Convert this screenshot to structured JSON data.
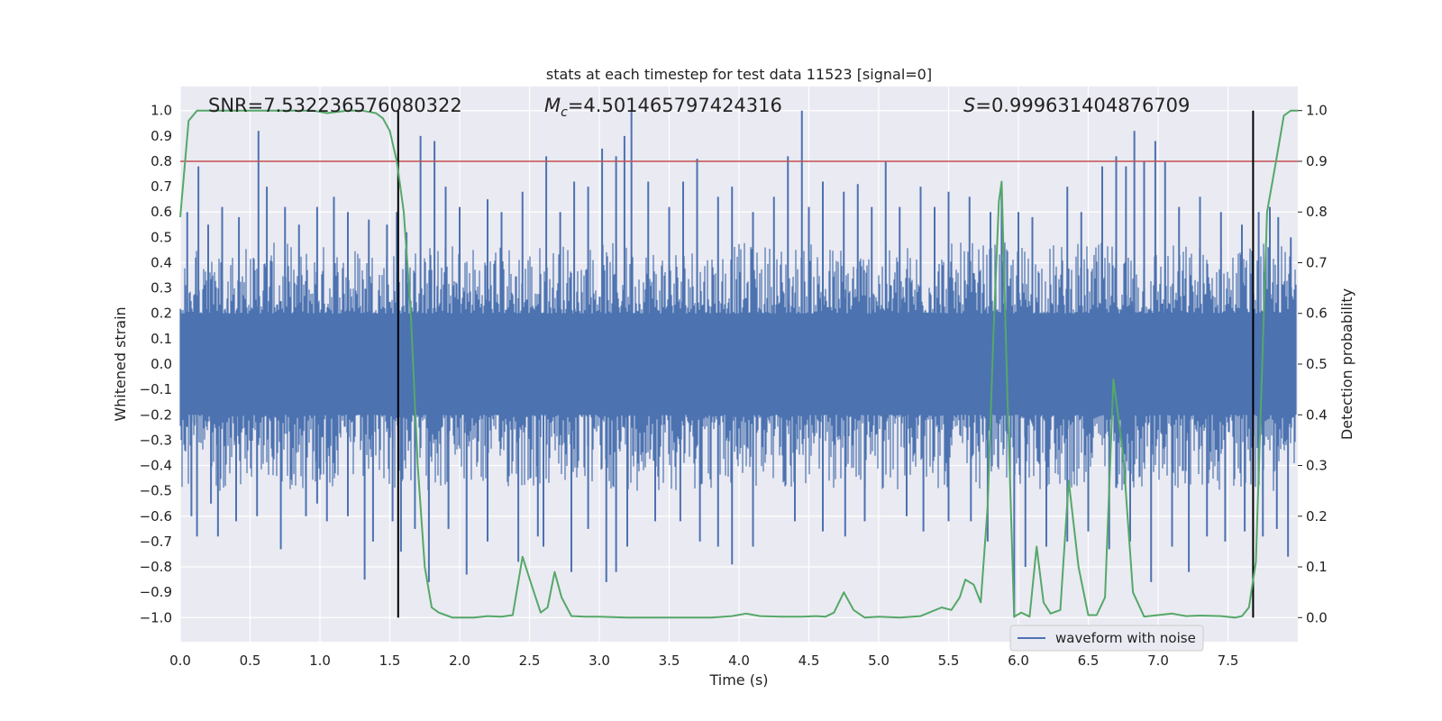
{
  "chart_data": {
    "type": "line",
    "title": "stats at each timestep for test data 11523 [signal=0]",
    "xlabel": "Time (s)",
    "ylabel_left": "Whitened strain",
    "ylabel_right": "Detection probability",
    "xlim": [
      0.0,
      8.0
    ],
    "ylim_left": [
      -1.095,
      1.095
    ],
    "ylim_right": [
      -0.0475,
      1.0475
    ],
    "x_ticks": [
      0.0,
      0.5,
      1.0,
      1.5,
      2.0,
      2.5,
      3.0,
      3.5,
      4.0,
      4.5,
      5.0,
      5.5,
      6.0,
      6.5,
      7.0,
      7.5
    ],
    "x_tick_labels": [
      "0.0",
      "0.5",
      "1.0",
      "1.5",
      "2.0",
      "2.5",
      "3.0",
      "3.5",
      "4.0",
      "4.5",
      "5.0",
      "5.5",
      "6.0",
      "6.5",
      "7.0",
      "7.5"
    ],
    "y_left_ticks": [
      1.0,
      0.9,
      0.8,
      0.7,
      0.6,
      0.5,
      0.4,
      0.3,
      0.2,
      0.1,
      0.0,
      -0.1,
      -0.2,
      -0.3,
      -0.4,
      -0.5,
      -0.6,
      -0.7,
      -0.8,
      -0.9,
      -1.0
    ],
    "y_left_tick_labels": [
      "1.0",
      "0.9",
      "0.8",
      "0.7",
      "0.6",
      "0.5",
      "0.4",
      "0.3",
      "0.2",
      "0.1",
      "0.0",
      "−0.1",
      "−0.2",
      "−0.3",
      "−0.4",
      "−0.5",
      "−0.6",
      "−0.7",
      "−0.8",
      "−0.9",
      "−1.0"
    ],
    "y_right_ticks": [
      1.0,
      0.9,
      0.8,
      0.7,
      0.6,
      0.5,
      0.4,
      0.3,
      0.2,
      0.1,
      0.0
    ],
    "y_right_tick_labels": [
      "1.0",
      "0.9",
      "0.8",
      "0.7",
      "0.6",
      "0.5",
      "0.4",
      "0.3",
      "0.2",
      "0.1",
      "0.0"
    ],
    "annotations": {
      "snr": "SNR=7.532236576080322",
      "mc_symbol": "M",
      "mc_subscript": "c",
      "mc_value": "=4.501465797424316",
      "s_symbol": "S",
      "s_value": "=0.999631404876709"
    },
    "threshold": {
      "axis": "left",
      "value": 0.8,
      "color": "#c44e52"
    },
    "vertical_lines": {
      "x": [
        1.56,
        7.68
      ],
      "ymin": -1.0,
      "ymax": 1.0,
      "color": "#000000"
    },
    "legend": {
      "entries": [
        "waveform with noise"
      ],
      "location": "lower-right"
    },
    "series": [
      {
        "name": "waveform with noise",
        "axis": "left",
        "color": "#4c72b0",
        "style": "dense noise trace spanning 0.0 to 7.99 s",
        "core_envelope": [
          -0.2,
          0.2
        ],
        "peaks_pos": [
          [
            0.05,
            0.6
          ],
          [
            0.13,
            0.78
          ],
          [
            0.2,
            0.55
          ],
          [
            0.3,
            0.62
          ],
          [
            0.42,
            0.58
          ],
          [
            0.56,
            0.92
          ],
          [
            0.62,
            0.7
          ],
          [
            0.75,
            0.62
          ],
          [
            0.85,
            0.55
          ],
          [
            0.98,
            0.62
          ],
          [
            1.1,
            0.66
          ],
          [
            1.2,
            0.6
          ],
          [
            1.35,
            0.57
          ],
          [
            1.48,
            0.55
          ],
          [
            1.55,
            0.6
          ],
          [
            1.62,
            0.52
          ],
          [
            1.72,
            0.9
          ],
          [
            1.82,
            0.88
          ],
          [
            1.9,
            0.7
          ],
          [
            2.0,
            0.62
          ],
          [
            2.2,
            0.65
          ],
          [
            2.3,
            0.6
          ],
          [
            2.45,
            0.68
          ],
          [
            2.62,
            0.82
          ],
          [
            2.72,
            0.6
          ],
          [
            2.82,
            0.72
          ],
          [
            2.92,
            0.7
          ],
          [
            3.02,
            0.85
          ],
          [
            3.12,
            0.82
          ],
          [
            3.18,
            0.9
          ],
          [
            3.23,
            1.0
          ],
          [
            3.35,
            0.72
          ],
          [
            3.5,
            0.62
          ],
          [
            3.6,
            0.72
          ],
          [
            3.7,
            0.81
          ],
          [
            3.85,
            0.66
          ],
          [
            3.95,
            0.7
          ],
          [
            4.1,
            0.6
          ],
          [
            4.25,
            0.66
          ],
          [
            4.35,
            0.82
          ],
          [
            4.45,
            1.0
          ],
          [
            4.5,
            0.62
          ],
          [
            4.6,
            0.72
          ],
          [
            4.75,
            0.68
          ],
          [
            4.85,
            0.71
          ],
          [
            4.95,
            0.62
          ],
          [
            5.05,
            0.8
          ],
          [
            5.15,
            0.62
          ],
          [
            5.3,
            0.7
          ],
          [
            5.4,
            0.62
          ],
          [
            5.5,
            0.68
          ],
          [
            5.65,
            0.66
          ],
          [
            5.8,
            0.6
          ],
          [
            5.88,
            0.7
          ],
          [
            6.0,
            0.6
          ],
          [
            6.1,
            0.58
          ],
          [
            6.35,
            0.7
          ],
          [
            6.45,
            0.6
          ],
          [
            6.6,
            0.78
          ],
          [
            6.7,
            0.82
          ],
          [
            6.77,
            0.78
          ],
          [
            6.83,
            0.92
          ],
          [
            6.9,
            0.8
          ],
          [
            6.98,
            0.88
          ],
          [
            7.05,
            0.8
          ],
          [
            7.15,
            0.62
          ],
          [
            7.3,
            0.66
          ],
          [
            7.45,
            0.6
          ],
          [
            7.6,
            0.55
          ],
          [
            7.72,
            0.6
          ],
          [
            7.8,
            0.62
          ],
          [
            7.86,
            0.58
          ],
          [
            7.95,
            0.5
          ]
        ],
        "peaks_neg": [
          [
            0.08,
            -0.6
          ],
          [
            0.12,
            -0.68
          ],
          [
            0.22,
            -0.55
          ],
          [
            0.27,
            -0.68
          ],
          [
            0.4,
            -0.62
          ],
          [
            0.55,
            -0.6
          ],
          [
            0.72,
            -0.73
          ],
          [
            0.9,
            -0.6
          ],
          [
            0.98,
            -0.55
          ],
          [
            1.05,
            -0.62
          ],
          [
            1.2,
            -0.6
          ],
          [
            1.32,
            -0.85
          ],
          [
            1.38,
            -0.7
          ],
          [
            1.52,
            -0.62
          ],
          [
            1.58,
            -0.74
          ],
          [
            1.68,
            -0.65
          ],
          [
            1.78,
            -0.86
          ],
          [
            1.92,
            -0.65
          ],
          [
            2.05,
            -0.83
          ],
          [
            2.2,
            -0.7
          ],
          [
            2.42,
            -0.78
          ],
          [
            2.56,
            -0.68
          ],
          [
            2.6,
            -0.72
          ],
          [
            2.8,
            -0.82
          ],
          [
            2.92,
            -0.65
          ],
          [
            3.05,
            -0.86
          ],
          [
            3.12,
            -0.82
          ],
          [
            3.2,
            -0.72
          ],
          [
            3.4,
            -0.62
          ],
          [
            3.58,
            -0.62
          ],
          [
            3.72,
            -0.7
          ],
          [
            3.85,
            -0.72
          ],
          [
            3.95,
            -0.79
          ],
          [
            4.1,
            -0.72
          ],
          [
            4.4,
            -0.62
          ],
          [
            4.6,
            -0.66
          ],
          [
            4.76,
            -0.68
          ],
          [
            4.9,
            -0.62
          ],
          [
            5.2,
            -0.6
          ],
          [
            5.32,
            -0.66
          ],
          [
            5.5,
            -0.62
          ],
          [
            5.66,
            -0.62
          ],
          [
            5.78,
            -0.7
          ],
          [
            5.97,
            -1.0
          ],
          [
            6.05,
            -0.8
          ],
          [
            6.2,
            -0.72
          ],
          [
            6.35,
            -0.7
          ],
          [
            6.5,
            -0.66
          ],
          [
            6.65,
            -0.73
          ],
          [
            6.8,
            -0.7
          ],
          [
            6.95,
            -0.86
          ],
          [
            7.1,
            -0.72
          ],
          [
            7.22,
            -0.82
          ],
          [
            7.35,
            -0.68
          ],
          [
            7.48,
            -0.7
          ],
          [
            7.62,
            -0.66
          ],
          [
            7.75,
            -0.68
          ],
          [
            7.85,
            -0.65
          ],
          [
            7.93,
            -0.76
          ]
        ]
      },
      {
        "name": "Detection probability",
        "axis": "right",
        "color": "#55a868",
        "x": [
          0.0,
          0.06,
          0.12,
          0.2,
          0.3,
          0.45,
          0.6,
          0.8,
          0.95,
          1.05,
          1.2,
          1.3,
          1.4,
          1.45,
          1.5,
          1.55,
          1.6,
          1.65,
          1.7,
          1.75,
          1.8,
          1.85,
          1.9,
          1.95,
          2.0,
          2.1,
          2.2,
          2.3,
          2.38,
          2.45,
          2.52,
          2.58,
          2.63,
          2.68,
          2.73,
          2.8,
          2.9,
          3.0,
          3.2,
          3.4,
          3.6,
          3.8,
          3.95,
          4.05,
          4.15,
          4.3,
          4.45,
          4.55,
          4.62,
          4.68,
          4.75,
          4.82,
          4.9,
          5.0,
          5.15,
          5.3,
          5.45,
          5.52,
          5.58,
          5.62,
          5.68,
          5.73,
          5.78,
          5.82,
          5.86,
          5.88,
          5.92,
          5.97,
          6.02,
          6.08,
          6.13,
          6.18,
          6.23,
          6.3,
          6.36,
          6.43,
          6.5,
          6.56,
          6.62,
          6.68,
          6.75,
          6.82,
          6.9,
          7.0,
          7.1,
          7.2,
          7.3,
          7.45,
          7.55,
          7.6,
          7.65,
          7.7,
          7.78,
          7.85,
          7.9,
          7.95,
          8.0
        ],
        "y": [
          0.79,
          0.98,
          1.0,
          1.0,
          1.0,
          1.0,
          1.0,
          1.0,
          1.0,
          0.995,
          1.0,
          1.0,
          0.995,
          0.985,
          0.96,
          0.9,
          0.8,
          0.6,
          0.3,
          0.1,
          0.02,
          0.01,
          0.005,
          0.0,
          0.0,
          0.0,
          0.003,
          0.002,
          0.005,
          0.12,
          0.06,
          0.01,
          0.02,
          0.09,
          0.04,
          0.003,
          0.002,
          0.002,
          0.0,
          0.0,
          0.0,
          0.0,
          0.003,
          0.008,
          0.003,
          0.002,
          0.002,
          0.003,
          0.002,
          0.01,
          0.05,
          0.015,
          0.0,
          0.002,
          0.0,
          0.003,
          0.02,
          0.015,
          0.04,
          0.075,
          0.065,
          0.03,
          0.22,
          0.55,
          0.82,
          0.86,
          0.45,
          0.002,
          0.01,
          0.002,
          0.14,
          0.03,
          0.008,
          0.015,
          0.27,
          0.1,
          0.005,
          0.005,
          0.04,
          0.47,
          0.32,
          0.05,
          0.002,
          0.005,
          0.008,
          0.003,
          0.004,
          0.003,
          0.0,
          0.003,
          0.02,
          0.11,
          0.8,
          0.91,
          0.99,
          1.0,
          1.0
        ]
      }
    ]
  }
}
